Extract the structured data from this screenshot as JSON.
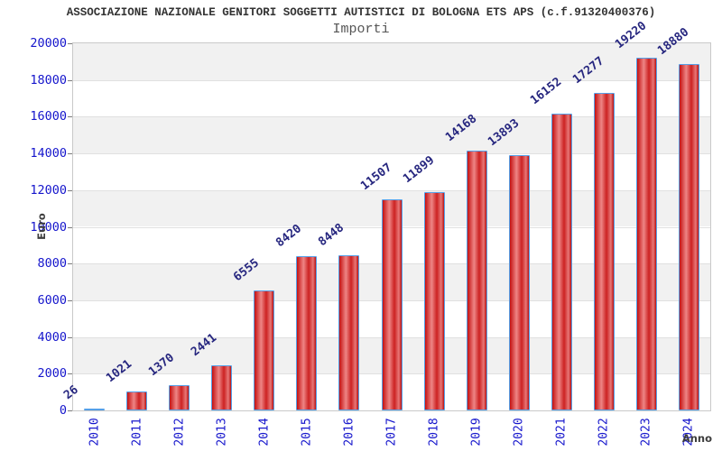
{
  "chart_data": {
    "type": "bar",
    "title": "ASSOCIAZIONE NAZIONALE GENITORI SOGGETTI AUTISTICI DI BOLOGNA ETS APS (c.f.91320400376)",
    "subtitle": "Importi",
    "xlabel": "Anno",
    "ylabel": "Euro",
    "categories": [
      "2010",
      "2011",
      "2012",
      "2013",
      "2014",
      "2015",
      "2016",
      "2017",
      "2018",
      "2019",
      "2020",
      "2021",
      "2022",
      "2023",
      "2024"
    ],
    "values": [
      26,
      1021,
      1370,
      2441,
      6555,
      8420,
      8448,
      11507,
      11899,
      14168,
      13893,
      16152,
      17277,
      19220,
      18880
    ],
    "ylim": [
      0,
      20000
    ],
    "ytick_step": 2000,
    "grid": "horizontal-bands-alternating",
    "legend": "none",
    "colors": {
      "tick_label": "#1515cc",
      "value_label": "#26267f",
      "bar_border": "#55a0e8",
      "bar_gradient": [
        "#c41111",
        "#ee8585",
        "#cc2222",
        "#e87777",
        "#bb1111"
      ],
      "bar_gradient_stops_pct": [
        0,
        35,
        62,
        85,
        100
      ],
      "band_gray": "#f1f1f1",
      "band_white": "#ffffff",
      "gridline": "#e0e0e0",
      "plot_border": "#c9c9c9",
      "title": "#333333",
      "subtitle": "#555555",
      "axis_label": "#3d3d3d"
    }
  }
}
